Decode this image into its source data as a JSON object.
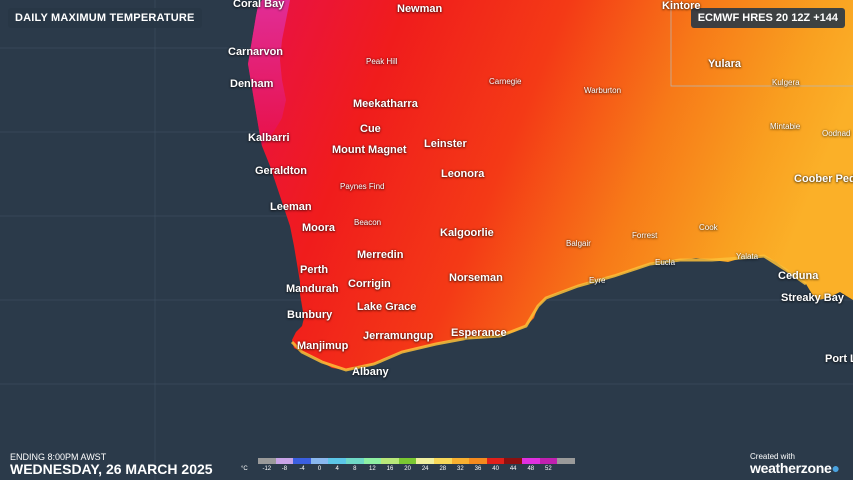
{
  "header": {
    "title": "DAILY MAXIMUM TEMPERATURE",
    "model": "ECMWF HRES 20 12Z +144"
  },
  "footer": {
    "ending": "ENDING 8:00PM AWST",
    "date": "WEDNESDAY, 26 MARCH 2025",
    "credit_small": "Created with",
    "credit_logo": "weatherzone"
  },
  "legend": {
    "unit": "°C",
    "ticks": [
      "-12",
      "-8",
      "-4",
      "0",
      "4",
      "8",
      "12",
      "16",
      "20",
      "24",
      "28",
      "32",
      "36",
      "40",
      "44",
      "48",
      "52"
    ],
    "colors": [
      "#9a9a9a",
      "#c9a4e8",
      "#3b5fe0",
      "#8ab8f0",
      "#5cc6e8",
      "#6fd9c7",
      "#8ef0a4",
      "#b8e87a",
      "#7ac832",
      "#f0f0a0",
      "#f8d85a",
      "#f8b030",
      "#f58a1e",
      "#e0201a",
      "#8c1010",
      "#e030e0",
      "#c020b0",
      "#9a9a9a"
    ]
  },
  "places": {
    "major": [
      "Coral Bay",
      "Newman",
      "Kintore",
      "Carnarvon",
      "Yulara",
      "Denham",
      "Meekatharra",
      "Cue",
      "Kalbarri",
      "Mount Magnet",
      "Leinster",
      "Geraldton",
      "Leonora",
      "Coober Pedy",
      "Leeman",
      "Moora",
      "Kalgoorlie",
      "Merredin",
      "Ceduna",
      "Perth",
      "Norseman",
      "Corrigin",
      "Mandurah",
      "Streaky Bay",
      "Lake Grace",
      "Bunbury",
      "Esperance",
      "Jerramungup",
      "Manjimup",
      "Port L",
      "Albany"
    ],
    "minor": [
      "Peak Hill",
      "Carnegie",
      "Warburton",
      "Kulgera",
      "Mintabie",
      "Oodnad",
      "Paynes Find",
      "Beacon",
      "Balgair",
      "Forrest",
      "Cook",
      "Eucla",
      "Yalata",
      "Eyre"
    ]
  }
}
